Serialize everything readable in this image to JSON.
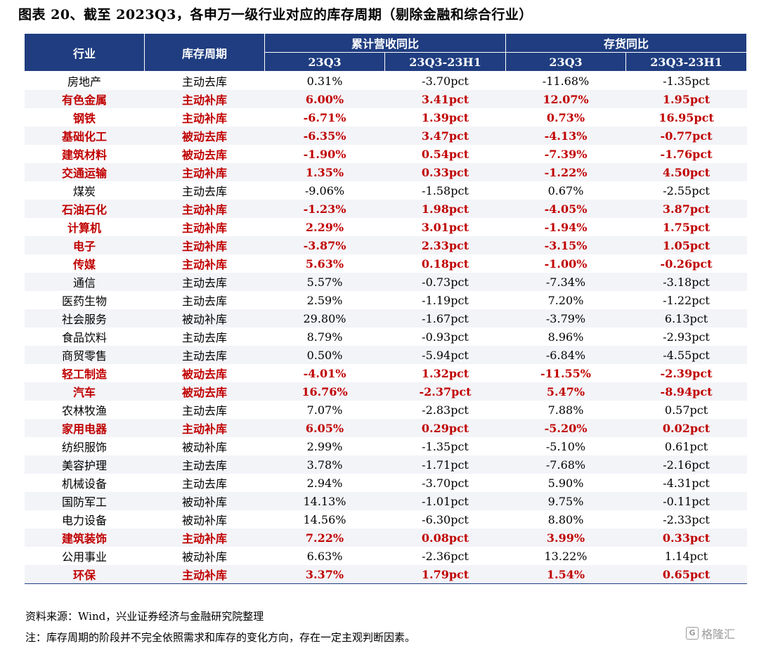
{
  "title": "图表 20、截至 2023Q3，各申万一级行业对应的库存周期（剔除金融和综合行业）",
  "table": {
    "col_industry": "行业",
    "col_cycle": "库存周期",
    "group_revenue": "累计营收同比",
    "group_inventory": "存货同比",
    "sub_q3": "23Q3",
    "sub_diff": "23Q3-23H1",
    "highlight_color": "#c00000",
    "header_color": "#1f3d80",
    "rows": [
      {
        "industry": "房地产",
        "cycle": "主动去库",
        "rev_q3": "0.31%",
        "rev_diff": "-3.70pct",
        "inv_q3": "-11.68%",
        "inv_diff": "-1.35pct",
        "highlight": false
      },
      {
        "industry": "有色金属",
        "cycle": "主动补库",
        "rev_q3": "6.00%",
        "rev_diff": "3.41pct",
        "inv_q3": "12.07%",
        "inv_diff": "1.95pct",
        "highlight": true
      },
      {
        "industry": "钢铁",
        "cycle": "主动补库",
        "rev_q3": "-6.71%",
        "rev_diff": "1.39pct",
        "inv_q3": "0.73%",
        "inv_diff": "16.95pct",
        "highlight": true
      },
      {
        "industry": "基础化工",
        "cycle": "被动去库",
        "rev_q3": "-6.35%",
        "rev_diff": "3.47pct",
        "inv_q3": "-4.13%",
        "inv_diff": "-0.77pct",
        "highlight": true
      },
      {
        "industry": "建筑材料",
        "cycle": "被动去库",
        "rev_q3": "-1.90%",
        "rev_diff": "0.54pct",
        "inv_q3": "-7.39%",
        "inv_diff": "-1.76pct",
        "highlight": true
      },
      {
        "industry": "交通运输",
        "cycle": "主动补库",
        "rev_q3": "1.35%",
        "rev_diff": "0.33pct",
        "inv_q3": "-1.22%",
        "inv_diff": "4.50pct",
        "highlight": true
      },
      {
        "industry": "煤炭",
        "cycle": "主动去库",
        "rev_q3": "-9.06%",
        "rev_diff": "-1.58pct",
        "inv_q3": "0.67%",
        "inv_diff": "-2.55pct",
        "highlight": false
      },
      {
        "industry": "石油石化",
        "cycle": "主动补库",
        "rev_q3": "-1.23%",
        "rev_diff": "1.98pct",
        "inv_q3": "-4.05%",
        "inv_diff": "3.87pct",
        "highlight": true
      },
      {
        "industry": "计算机",
        "cycle": "主动补库",
        "rev_q3": "2.29%",
        "rev_diff": "3.01pct",
        "inv_q3": "-1.94%",
        "inv_diff": "1.75pct",
        "highlight": true
      },
      {
        "industry": "电子",
        "cycle": "主动补库",
        "rev_q3": "-3.87%",
        "rev_diff": "2.33pct",
        "inv_q3": "-3.15%",
        "inv_diff": "1.05pct",
        "highlight": true
      },
      {
        "industry": "传媒",
        "cycle": "主动补库",
        "rev_q3": "5.63%",
        "rev_diff": "0.18pct",
        "inv_q3": "-1.00%",
        "inv_diff": "-0.26pct",
        "highlight": true
      },
      {
        "industry": "通信",
        "cycle": "主动去库",
        "rev_q3": "5.57%",
        "rev_diff": "-0.73pct",
        "inv_q3": "-7.34%",
        "inv_diff": "-3.18pct",
        "highlight": false
      },
      {
        "industry": "医药生物",
        "cycle": "主动去库",
        "rev_q3": "2.59%",
        "rev_diff": "-1.19pct",
        "inv_q3": "7.20%",
        "inv_diff": "-1.22pct",
        "highlight": false
      },
      {
        "industry": "社会服务",
        "cycle": "被动补库",
        "rev_q3": "29.80%",
        "rev_diff": "-1.67pct",
        "inv_q3": "-3.79%",
        "inv_diff": "6.13pct",
        "highlight": false
      },
      {
        "industry": "食品饮料",
        "cycle": "主动去库",
        "rev_q3": "8.79%",
        "rev_diff": "-0.93pct",
        "inv_q3": "8.96%",
        "inv_diff": "-2.93pct",
        "highlight": false
      },
      {
        "industry": "商贸零售",
        "cycle": "主动去库",
        "rev_q3": "0.50%",
        "rev_diff": "-5.94pct",
        "inv_q3": "-6.84%",
        "inv_diff": "-4.55pct",
        "highlight": false
      },
      {
        "industry": "轻工制造",
        "cycle": "被动去库",
        "rev_q3": "-4.01%",
        "rev_diff": "1.32pct",
        "inv_q3": "-11.55%",
        "inv_diff": "-2.39pct",
        "highlight": true
      },
      {
        "industry": "汽车",
        "cycle": "被动去库",
        "rev_q3": "16.76%",
        "rev_diff": "-2.37pct",
        "inv_q3": "5.47%",
        "inv_diff": "-8.94pct",
        "highlight": true
      },
      {
        "industry": "农林牧渔",
        "cycle": "主动去库",
        "rev_q3": "7.07%",
        "rev_diff": "-2.83pct",
        "inv_q3": "7.88%",
        "inv_diff": "0.57pct",
        "highlight": false
      },
      {
        "industry": "家用电器",
        "cycle": "主动补库",
        "rev_q3": "6.05%",
        "rev_diff": "0.29pct",
        "inv_q3": "-5.20%",
        "inv_diff": "0.02pct",
        "highlight": true
      },
      {
        "industry": "纺织服饰",
        "cycle": "被动补库",
        "rev_q3": "2.99%",
        "rev_diff": "-1.35pct",
        "inv_q3": "-5.10%",
        "inv_diff": "0.61pct",
        "highlight": false
      },
      {
        "industry": "美容护理",
        "cycle": "主动去库",
        "rev_q3": "3.78%",
        "rev_diff": "-1.71pct",
        "inv_q3": "-7.68%",
        "inv_diff": "-2.16pct",
        "highlight": false
      },
      {
        "industry": "机械设备",
        "cycle": "主动去库",
        "rev_q3": "2.94%",
        "rev_diff": "-3.70pct",
        "inv_q3": "5.90%",
        "inv_diff": "-4.31pct",
        "highlight": false
      },
      {
        "industry": "国防军工",
        "cycle": "被动补库",
        "rev_q3": "14.13%",
        "rev_diff": "-1.01pct",
        "inv_q3": "9.75%",
        "inv_diff": "-0.11pct",
        "highlight": false
      },
      {
        "industry": "电力设备",
        "cycle": "被动补库",
        "rev_q3": "14.56%",
        "rev_diff": "-6.30pct",
        "inv_q3": "8.80%",
        "inv_diff": "-2.33pct",
        "highlight": false
      },
      {
        "industry": "建筑装饰",
        "cycle": "主动补库",
        "rev_q3": "7.22%",
        "rev_diff": "0.08pct",
        "inv_q3": "3.99%",
        "inv_diff": "0.33pct",
        "highlight": true
      },
      {
        "industry": "公用事业",
        "cycle": "被动补库",
        "rev_q3": "6.63%",
        "rev_diff": "-2.36pct",
        "inv_q3": "13.22%",
        "inv_diff": "1.14pct",
        "highlight": false
      },
      {
        "industry": "环保",
        "cycle": "主动补库",
        "rev_q3": "3.37%",
        "rev_diff": "1.79pct",
        "inv_q3": "1.54%",
        "inv_diff": "0.65pct",
        "highlight": true
      }
    ]
  },
  "source": "资料来源：Wind，兴业证券经济与金融研究院整理",
  "note": "注：库存周期的阶段并不完全依照需求和库存的变化方向，存在一定主观判断因素。",
  "watermark": {
    "icon_text": "G",
    "text": "格隆汇"
  }
}
